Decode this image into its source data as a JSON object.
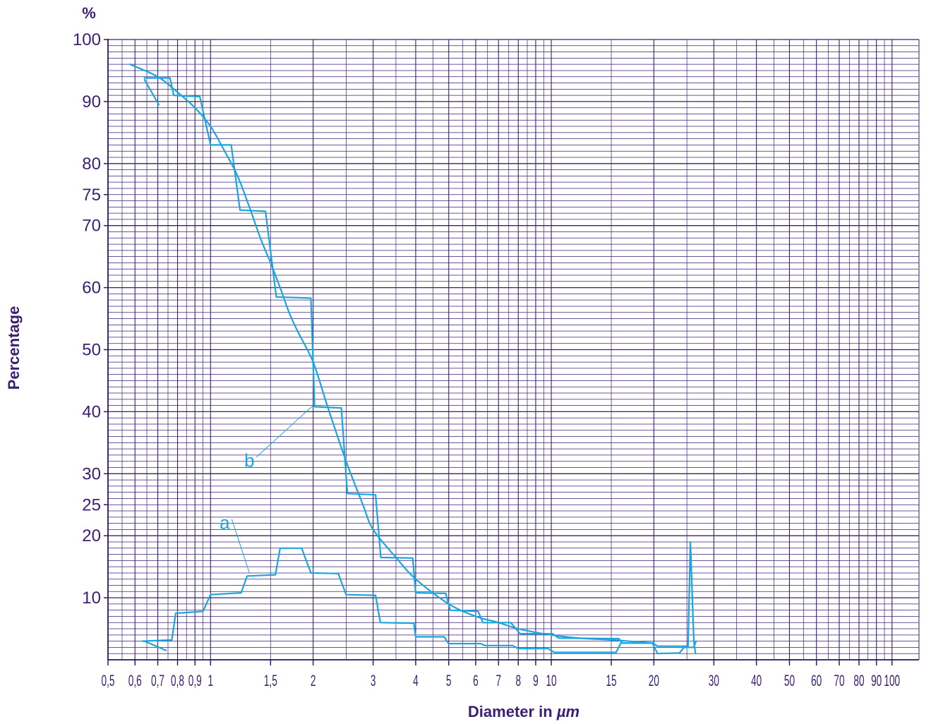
{
  "colors": {
    "grid": "#3a1f73",
    "axis": "#2e1a5e",
    "text": "#3a1f73",
    "curve": "#1ba5e0"
  },
  "chart_data": {
    "type": "line",
    "title": "",
    "ylabel": "Percentage",
    "xlabel_prefix": "Diameter in ",
    "xlabel_unit": "µm",
    "y_unit_label": "%",
    "x_scale": "log",
    "xlim": [
      0.5,
      120
    ],
    "ylim": [
      0,
      100
    ],
    "grid": true,
    "x_tick_labels": [
      "0,5",
      "0,6",
      "0,7",
      "0,8",
      "0,9",
      "1",
      "1,5",
      "2",
      "3",
      "4",
      "5",
      "6",
      "7",
      "8",
      "9",
      "10",
      "15",
      "20",
      "30",
      "40",
      "50",
      "60",
      "70",
      "80",
      "90",
      "100"
    ],
    "x_tick_values": [
      0.5,
      0.6,
      0.7,
      0.8,
      0.9,
      1,
      1.5,
      2,
      3,
      4,
      5,
      6,
      7,
      8,
      9,
      10,
      15,
      20,
      30,
      40,
      50,
      60,
      70,
      80,
      90,
      100
    ],
    "y_tick_labels": [
      "10",
      "20",
      "25",
      "30",
      "40",
      "50",
      "60",
      "70",
      "75",
      "80",
      "90",
      "100"
    ],
    "y_tick_values": [
      10,
      20,
      25,
      30,
      40,
      50,
      60,
      70,
      75,
      80,
      90,
      100
    ],
    "annotations": [
      {
        "text": "a",
        "x": 1.1,
        "y": 22,
        "target_x": 1.3,
        "target_y": 14
      },
      {
        "text": "b",
        "x": 1.3,
        "y": 32,
        "target_x": 2,
        "target_y": 41
      }
    ],
    "series": [
      {
        "name": "a",
        "style": "step",
        "points": [
          [
            0.63,
            3
          ],
          [
            0.77,
            3.2
          ],
          [
            0.79,
            7.5
          ],
          [
            0.95,
            7.8
          ],
          [
            1.0,
            10.5
          ],
          [
            1.23,
            10.8
          ],
          [
            1.28,
            13.5
          ],
          [
            1.55,
            13.7
          ],
          [
            1.6,
            18
          ],
          [
            1.85,
            18
          ],
          [
            1.97,
            14
          ],
          [
            2.37,
            13.9
          ],
          [
            2.5,
            10.5
          ],
          [
            3.05,
            10.4
          ],
          [
            3.15,
            6
          ],
          [
            3.95,
            5.9
          ],
          [
            4.0,
            3.7
          ],
          [
            4.85,
            3.7
          ],
          [
            5.0,
            2.6
          ],
          [
            6.2,
            2.6
          ],
          [
            6.4,
            2.3
          ],
          [
            7.7,
            2.3
          ],
          [
            8.0,
            1.8
          ],
          [
            9.8,
            1.8
          ],
          [
            10.2,
            1.2
          ],
          [
            15.5,
            1.2
          ],
          [
            16.0,
            2.7
          ],
          [
            19.8,
            2.7
          ],
          [
            20.5,
            1.0
          ],
          [
            23.8,
            1.1
          ],
          [
            24.5,
            2
          ],
          [
            26.2,
            2
          ],
          [
            26.6,
            3
          ]
        ]
      },
      {
        "name": "b",
        "style": "step",
        "points": [
          [
            0.64,
            93.8
          ],
          [
            0.76,
            93.8
          ],
          [
            0.78,
            91
          ],
          [
            0.93,
            90.8
          ],
          [
            1.0,
            83
          ],
          [
            1.15,
            83
          ],
          [
            1.22,
            72.5
          ],
          [
            1.45,
            72.3
          ],
          [
            1.56,
            58.5
          ],
          [
            1.97,
            58.3
          ],
          [
            2.02,
            40.8
          ],
          [
            2.42,
            40.6
          ],
          [
            2.52,
            26.8
          ],
          [
            3.05,
            26.6
          ],
          [
            3.16,
            16.5
          ],
          [
            3.92,
            16.4
          ],
          [
            4.0,
            10.8
          ],
          [
            4.9,
            10.7
          ],
          [
            5.05,
            8
          ],
          [
            6.1,
            7.8
          ],
          [
            6.3,
            6
          ],
          [
            7.6,
            6
          ],
          [
            8.1,
            4.2
          ],
          [
            10.1,
            4.2
          ],
          [
            10.5,
            3.5
          ],
          [
            15.8,
            3.4
          ],
          [
            16.2,
            2.7
          ],
          [
            19.8,
            2.7
          ],
          [
            20.5,
            2.2
          ],
          [
            25.2,
            2.2
          ],
          [
            25.6,
            19
          ],
          [
            26.2,
            3
          ],
          [
            26.5,
            1
          ]
        ]
      },
      {
        "name": "",
        "style": "smooth",
        "points": [
          [
            0.58,
            96
          ],
          [
            0.7,
            94
          ],
          [
            0.8,
            91.5
          ],
          [
            0.9,
            89
          ],
          [
            1.0,
            86
          ],
          [
            1.1,
            82
          ],
          [
            1.2,
            78
          ],
          [
            1.3,
            73
          ],
          [
            1.4,
            68
          ],
          [
            1.5,
            64
          ],
          [
            1.6,
            60
          ],
          [
            1.7,
            56
          ],
          [
            1.8,
            53
          ],
          [
            2.0,
            48
          ],
          [
            2.2,
            41
          ],
          [
            2.5,
            32
          ],
          [
            2.8,
            25
          ],
          [
            3.0,
            21
          ],
          [
            3.5,
            16.5
          ],
          [
            4.0,
            13
          ],
          [
            5.0,
            9
          ],
          [
            6.0,
            7
          ],
          [
            7.0,
            6
          ],
          [
            8.0,
            5
          ],
          [
            10.0,
            4
          ],
          [
            12.0,
            3.5
          ],
          [
            15.0,
            3.2
          ],
          [
            20.0,
            2.7
          ]
        ]
      },
      {
        "name": "",
        "style": "line",
        "points": [
          [
            0.64,
            93.5
          ],
          [
            0.705,
            89.5
          ]
        ]
      },
      {
        "name": "",
        "style": "line",
        "points": [
          [
            0.64,
            3
          ],
          [
            0.74,
            1.5
          ]
        ]
      }
    ]
  }
}
